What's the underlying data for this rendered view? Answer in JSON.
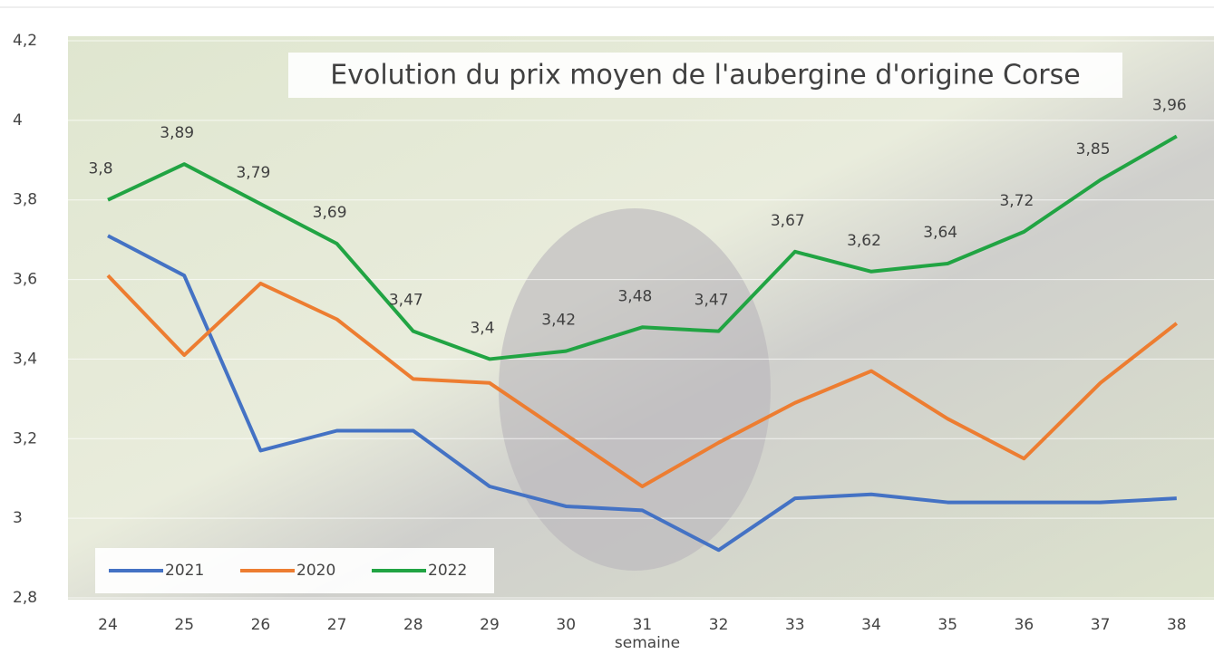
{
  "chart_data": {
    "type": "line",
    "title": "Evolution du prix moyen de l'aubergine d'origine Corse",
    "x_label": "semaine",
    "categories": [
      "24",
      "25",
      "26",
      "27",
      "28",
      "29",
      "30",
      "31",
      "32",
      "33",
      "34",
      "35",
      "36",
      "37",
      "38"
    ],
    "series": [
      {
        "name": "2021",
        "color": "#4472c4",
        "values": [
          3.71,
          3.61,
          3.17,
          3.22,
          3.22,
          3.08,
          3.03,
          3.02,
          2.92,
          3.05,
          3.06,
          3.04,
          3.04,
          3.04,
          3.05
        ]
      },
      {
        "name": "2020",
        "color": "#ed7d31",
        "values": [
          3.61,
          3.41,
          3.59,
          3.5,
          3.35,
          3.34,
          3.21,
          3.08,
          3.19,
          3.29,
          3.37,
          3.25,
          3.15,
          3.34,
          3.49
        ]
      },
      {
        "name": "2022",
        "color": "#21a443",
        "values": [
          3.8,
          3.89,
          3.79,
          3.69,
          3.47,
          3.4,
          3.42,
          3.48,
          3.47,
          3.67,
          3.62,
          3.64,
          3.72,
          3.85,
          3.96
        ],
        "value_labels": [
          "3,8",
          "3,89",
          "3,79",
          "3,69",
          "3,47",
          "3,4",
          "3,42",
          "3,48",
          "3,47",
          "3,67",
          "3,62",
          "3,64",
          "3,72",
          "3,85",
          "3,96"
        ]
      }
    ],
    "ylim": [
      2.8,
      4.2
    ],
    "yticks": [
      {
        "value": 2.8,
        "label": "2,8"
      },
      3,
      {
        "value": 3.2,
        "label": "3,2"
      },
      {
        "value": 3.4,
        "label": "3,4"
      },
      {
        "value": 3.6,
        "label": "3,6"
      },
      {
        "value": 3.8,
        "label": "3,8"
      },
      4,
      {
        "value": 4.2,
        "label": "4,2"
      }
    ],
    "grid": true,
    "legend": "bottom-left"
  }
}
